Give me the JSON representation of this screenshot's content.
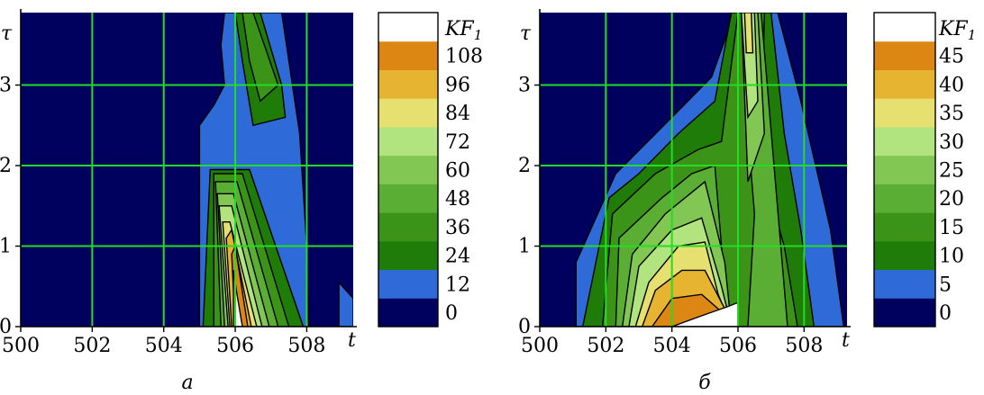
{
  "chart_data": [
    {
      "type": "heatmap",
      "panel_label": "а",
      "xlabel": "t",
      "ylabel": "τ",
      "xlim": [
        500,
        509.3
      ],
      "ylim": [
        0,
        3.9
      ],
      "x_ticks": [
        "500",
        "502",
        "504",
        "506",
        "508"
      ],
      "y_ticks": [
        "0",
        "1",
        "2",
        "3"
      ],
      "grid": true,
      "grid_color": "#22dd22",
      "background_color": "#00005e",
      "colorbar": {
        "title": "KF",
        "title_subscript": "1",
        "levels": [
          "0",
          "12",
          "24",
          "36",
          "48",
          "60",
          "72",
          "84",
          "96",
          "108"
        ],
        "colors": [
          "#00005e",
          "#2f6bd8",
          "#207c08",
          "#3b9418",
          "#5bae34",
          "#82c654",
          "#b1e37e",
          "#e6e070",
          "#e7b431",
          "#dc8713",
          "#ffffff"
        ]
      },
      "regions": [
        {
          "level": 12,
          "points": [
            [
              505.7,
              3.9
            ],
            [
              507.3,
              3.9
            ],
            [
              507.8,
              2.4
            ],
            [
              508,
              1.0
            ],
            [
              508.05,
              0
            ],
            [
              505,
              0
            ],
            [
              505,
              2.5
            ],
            [
              505.4,
              2.75
            ],
            [
              505.7,
              3.0
            ],
            [
              505.6,
              3.5
            ]
          ]
        },
        {
          "level": 12,
          "points": [
            [
              508.9,
              0.55
            ],
            [
              509.3,
              0.35
            ],
            [
              509.3,
              0
            ],
            [
              508.9,
              0
            ]
          ]
        },
        {
          "level": 24,
          "points": [
            [
              506.0,
              3.9
            ],
            [
              506.7,
              3.9
            ],
            [
              507.3,
              3.0
            ],
            [
              507.4,
              2.6
            ],
            [
              506.5,
              2.5
            ],
            [
              506.2,
              3.3
            ]
          ]
        },
        {
          "level": 24,
          "points": [
            [
              505.3,
              1.95
            ],
            [
              506.4,
              1.95
            ],
            [
              507.9,
              0
            ],
            [
              505.1,
              0
            ]
          ]
        },
        {
          "level": 36,
          "points": [
            [
              506.2,
              3.9
            ],
            [
              506.5,
              3.9
            ],
            [
              507.2,
              3.0
            ],
            [
              506.7,
              2.8
            ],
            [
              506.4,
              3.3
            ]
          ]
        },
        {
          "level": 36,
          "points": [
            [
              505.4,
              1.9
            ],
            [
              506.2,
              1.9
            ],
            [
              507.5,
              0
            ],
            [
              505.4,
              0
            ]
          ]
        },
        {
          "level": 48,
          "points": [
            [
              505.45,
              1.8
            ],
            [
              506.05,
              1.8
            ],
            [
              507.2,
              0
            ],
            [
              505.6,
              0
            ]
          ]
        },
        {
          "level": 60,
          "points": [
            [
              505.5,
              1.65
            ],
            [
              505.95,
              1.65
            ],
            [
              506.95,
              0
            ],
            [
              505.7,
              0
            ]
          ]
        },
        {
          "level": 72,
          "points": [
            [
              505.55,
              1.5
            ],
            [
              505.9,
              1.5
            ],
            [
              506.75,
              0
            ],
            [
              505.8,
              0
            ]
          ]
        },
        {
          "level": 84,
          "points": [
            [
              505.65,
              1.3
            ],
            [
              505.85,
              1.3
            ],
            [
              506.6,
              0
            ],
            [
              505.85,
              0
            ]
          ]
        },
        {
          "level": 96,
          "points": [
            [
              505.75,
              1.1
            ],
            [
              505.9,
              1.2
            ],
            [
              506.45,
              0
            ],
            [
              505.9,
              0
            ]
          ]
        },
        {
          "level": 108,
          "points": [
            [
              505.9,
              0.9
            ],
            [
              506.0,
              1.0
            ],
            [
              506.35,
              0
            ],
            [
              506.0,
              0
            ]
          ]
        },
        {
          "level": 120,
          "points": [
            [
              505.95,
              0.7
            ],
            [
              506.05,
              0.4
            ],
            [
              506.2,
              0
            ],
            [
              505.95,
              0
            ]
          ]
        }
      ]
    },
    {
      "type": "heatmap",
      "panel_label": "б",
      "xlabel": "t",
      "ylabel": "τ",
      "xlim": [
        500,
        509.3
      ],
      "ylim": [
        0,
        3.9
      ],
      "x_ticks": [
        "500",
        "502",
        "504",
        "506",
        "508"
      ],
      "y_ticks": [
        "0",
        "1",
        "2",
        "3"
      ],
      "grid": true,
      "grid_color": "#22dd22",
      "background_color": "#00005e",
      "colorbar": {
        "title": "KF",
        "title_subscript": "1",
        "levels": [
          "0",
          "5",
          "10",
          "15",
          "20",
          "25",
          "30",
          "35",
          "40",
          "45"
        ],
        "colors": [
          "#00005e",
          "#2f6bd8",
          "#207c08",
          "#3b9418",
          "#5bae34",
          "#82c654",
          "#b1e37e",
          "#e6e070",
          "#e7b431",
          "#dc8713",
          "#ffffff"
        ]
      },
      "regions": [
        {
          "level": 5,
          "points": [
            [
              501.1,
              0
            ],
            [
              501.1,
              0.8
            ],
            [
              502.3,
              1.9
            ],
            [
              504,
              2.6
            ],
            [
              505.2,
              3.1
            ],
            [
              505.9,
              3.9
            ],
            [
              507.2,
              3.9
            ],
            [
              507.9,
              2.8
            ],
            [
              508.8,
              1.2
            ],
            [
              509.2,
              0
            ]
          ]
        },
        {
          "level": 10,
          "points": [
            [
              501.3,
              0
            ],
            [
              501.7,
              0.8
            ],
            [
              502.1,
              1.6
            ],
            [
              503,
              1.9
            ],
            [
              504.2,
              2.4
            ],
            [
              505.3,
              2.8
            ],
            [
              505.8,
              3.9
            ],
            [
              507,
              3.9
            ],
            [
              507.4,
              2.4
            ],
            [
              507.9,
              1.2
            ],
            [
              508.3,
              0
            ]
          ]
        },
        {
          "level": 15,
          "points": [
            [
              501.9,
              0
            ],
            [
              502.2,
              1.4
            ],
            [
              503.5,
              1.9
            ],
            [
              504.8,
              2.2
            ],
            [
              505.5,
              2.3
            ],
            [
              506,
              3.9
            ],
            [
              506.8,
              3.9
            ],
            [
              506.7,
              2.0
            ],
            [
              507.4,
              1.0
            ],
            [
              507.8,
              0
            ]
          ]
        },
        {
          "level": 20,
          "points": [
            [
              502.3,
              0
            ],
            [
              502.4,
              1.1
            ],
            [
              503.7,
              1.6
            ],
            [
              504.6,
              1.9
            ],
            [
              505.3,
              2.0
            ],
            [
              505.7,
              0
            ],
            [
              506.3,
              0
            ],
            [
              506.5,
              1.4
            ],
            [
              506.3,
              2.4
            ],
            [
              506.2,
              3.9
            ],
            [
              506.7,
              3.9
            ],
            [
              507.5,
              0
            ]
          ]
        },
        {
          "level": 25,
          "points": [
            [
              502.5,
              0
            ],
            [
              502.8,
              0.9
            ],
            [
              503.8,
              1.4
            ],
            [
              505.0,
              1.8
            ],
            [
              505.6,
              0.8
            ],
            [
              505.8,
              0
            ]
          ]
        },
        {
          "level": 25,
          "points": [
            [
              506.1,
              3.9
            ],
            [
              506.6,
              3.9
            ],
            [
              506.8,
              2.4
            ],
            [
              506.3,
              1.8
            ]
          ]
        },
        {
          "level": 30,
          "points": [
            [
              502.7,
              0
            ],
            [
              503.0,
              0.75
            ],
            [
              504.0,
              1.2
            ],
            [
              504.9,
              1.35
            ],
            [
              505.5,
              0.5
            ],
            [
              505.8,
              0
            ]
          ]
        },
        {
          "level": 30,
          "points": [
            [
              506.1,
              3.9
            ],
            [
              506.5,
              3.9
            ],
            [
              506.6,
              2.8
            ],
            [
              506.3,
              2.6
            ]
          ]
        },
        {
          "level": 35,
          "points": [
            [
              502.9,
              0
            ],
            [
              503.3,
              0.55
            ],
            [
              504.2,
              1.0
            ],
            [
              505.0,
              1.05
            ],
            [
              505.4,
              0.4
            ],
            [
              505.8,
              0
            ]
          ]
        },
        {
          "level": 35,
          "points": [
            [
              506.2,
              3.9
            ],
            [
              506.4,
              3.9
            ],
            [
              506.45,
              3.4
            ],
            [
              506.25,
              3.4
            ]
          ]
        },
        {
          "level": 40,
          "points": [
            [
              503.1,
              0
            ],
            [
              503.5,
              0.45
            ],
            [
              504.3,
              0.7
            ],
            [
              505.0,
              0.7
            ],
            [
              505.5,
              0.3
            ],
            [
              505.9,
              0
            ]
          ]
        },
        {
          "level": 45,
          "points": [
            [
              503.4,
              0
            ],
            [
              504.0,
              0.35
            ],
            [
              504.9,
              0.4
            ],
            [
              505.6,
              0.15
            ],
            [
              505.9,
              0
            ]
          ]
        },
        {
          "level": 50,
          "points": [
            [
              504.0,
              0
            ],
            [
              505.0,
              0.15
            ],
            [
              505.7,
              0.25
            ],
            [
              506.0,
              0.3
            ],
            [
              506.0,
              0
            ]
          ]
        }
      ]
    }
  ]
}
